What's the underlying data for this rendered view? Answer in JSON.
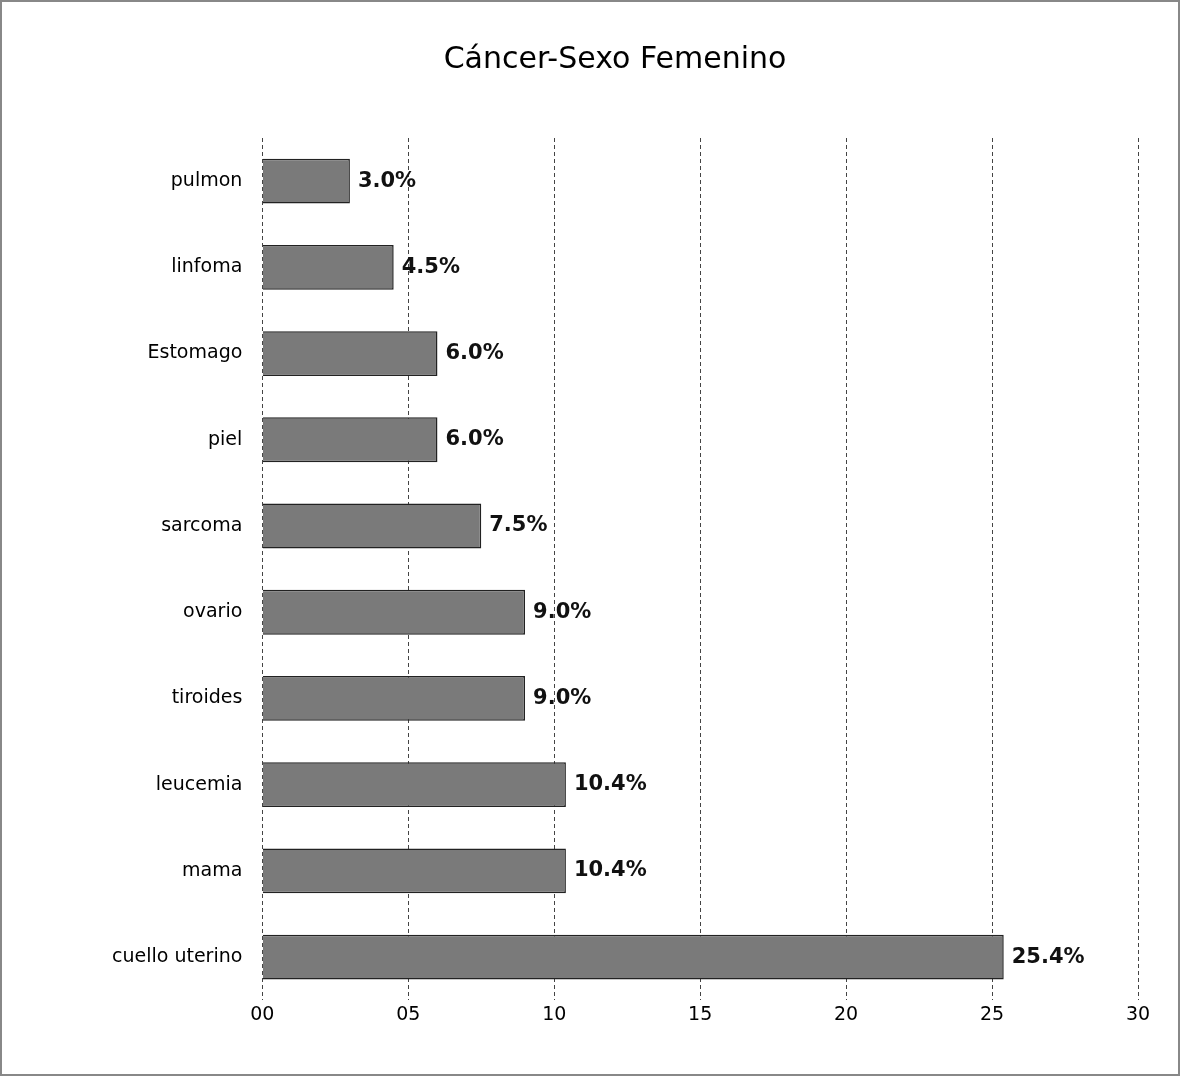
{
  "chart_data": {
    "type": "bar",
    "orientation": "horizontal",
    "title": "Cáncer-Sexo Femenino",
    "categories": [
      "pulmon",
      "linfoma",
      "Estomago",
      "piel",
      "sarcoma",
      "ovario",
      "tiroides",
      "leucemia",
      "mama",
      "cuello uterino"
    ],
    "values": [
      3.0,
      4.5,
      6.0,
      6.0,
      7.5,
      9.0,
      9.0,
      10.4,
      10.4,
      25.4
    ],
    "value_labels": [
      "3.0%",
      "4.5%",
      "6.0%",
      "6.0%",
      "7.5%",
      "9.0%",
      "9.0%",
      "10.4%",
      "10.4%",
      "25.4%"
    ],
    "color": "#7a7a7a",
    "xlim": [
      0,
      30
    ],
    "xticks": [
      {
        "value": 0,
        "label": "00"
      },
      {
        "value": 5,
        "label": "05"
      },
      10,
      15,
      20,
      25,
      30
    ],
    "grid": "x",
    "legend": false
  }
}
